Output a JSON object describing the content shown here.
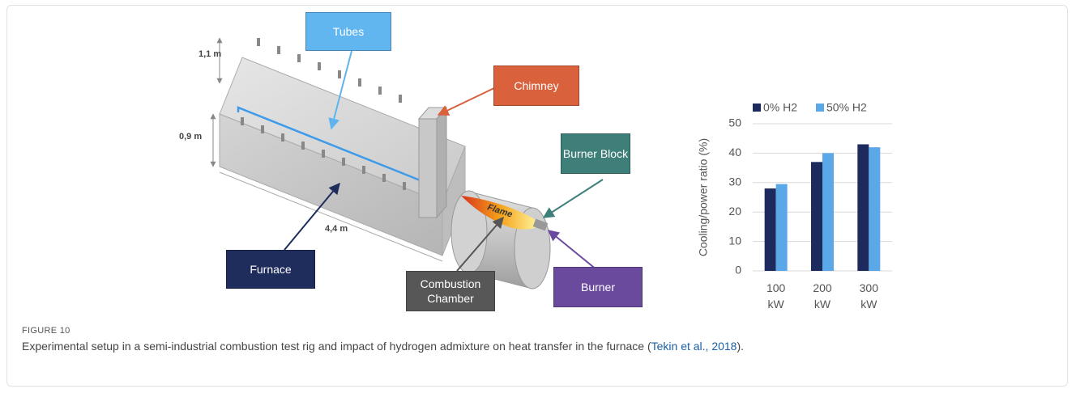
{
  "figure": {
    "labels": {
      "tubes": "Tubes",
      "chimney": "Chimney",
      "burner_block": "Burner Block",
      "furnace": "Furnace",
      "combustion_chamber": "Combustion Chamber",
      "burner": "Burner",
      "flame": "Flame"
    },
    "dimensions": {
      "height": "1,1 m",
      "width": "0,9 m",
      "length": "4,4 m"
    }
  },
  "chart_data": {
    "type": "bar",
    "y_label": "Cooling/power ratio (%)",
    "categories": [
      "100 kW",
      "200 kW",
      "300 kW"
    ],
    "series": [
      {
        "name": "0% H2",
        "color": "#1c2a5e",
        "values": [
          28,
          37,
          43
        ]
      },
      {
        "name": "50% H2",
        "color": "#5aa8e8",
        "values": [
          29.5,
          40,
          42
        ]
      }
    ],
    "ylim": [
      0,
      50
    ],
    "yticks": [
      0,
      10,
      20,
      30,
      40,
      50
    ],
    "grid": true,
    "legend": "top"
  },
  "caption": {
    "label": "FIGURE 10",
    "text": "Experimental setup in a semi-industrial combustion test rig and impact of hydrogen admixture on heat transfer in the furnace (",
    "link": "Tekin et al., 2018",
    "text_end": ")."
  }
}
